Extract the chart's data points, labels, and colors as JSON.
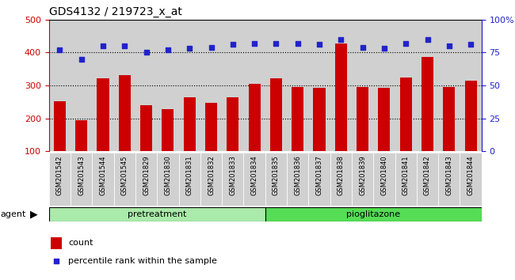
{
  "title": "GDS4132 / 219723_x_at",
  "samples": [
    "GSM201542",
    "GSM201543",
    "GSM201544",
    "GSM201545",
    "GSM201829",
    "GSM201830",
    "GSM201831",
    "GSM201832",
    "GSM201833",
    "GSM201834",
    "GSM201835",
    "GSM201836",
    "GSM201837",
    "GSM201838",
    "GSM201839",
    "GSM201840",
    "GSM201841",
    "GSM201842",
    "GSM201843",
    "GSM201844"
  ],
  "counts": [
    253,
    195,
    322,
    330,
    240,
    228,
    265,
    248,
    265,
    305,
    322,
    295,
    292,
    428,
    295,
    293,
    323,
    387,
    295,
    314
  ],
  "percentile_ranks": [
    77,
    70,
    80,
    80,
    75,
    77,
    78,
    79,
    81,
    82,
    82,
    82,
    81,
    85,
    79,
    78,
    82,
    85,
    80,
    81
  ],
  "pretreatment_count": 10,
  "pioglitazone_count": 10,
  "bar_color": "#cc0000",
  "dot_color": "#2222cc",
  "ylim_left": [
    100,
    500
  ],
  "ylim_right": [
    0,
    100
  ],
  "yticks_left": [
    100,
    200,
    300,
    400,
    500
  ],
  "yticks_right": [
    0,
    25,
    50,
    75,
    100
  ],
  "grid_values": [
    200,
    300,
    400
  ],
  "pretreatment_color": "#aaeaaa",
  "pioglitazone_color": "#55dd55",
  "agent_label": "agent",
  "legend_count_label": "count",
  "legend_pct_label": "percentile rank within the sample",
  "bar_width": 0.55,
  "tick_label_fontsize": 6.0,
  "title_fontsize": 10,
  "col_bg_color": "#d0d0d0",
  "plot_bg_color": "#ffffff"
}
